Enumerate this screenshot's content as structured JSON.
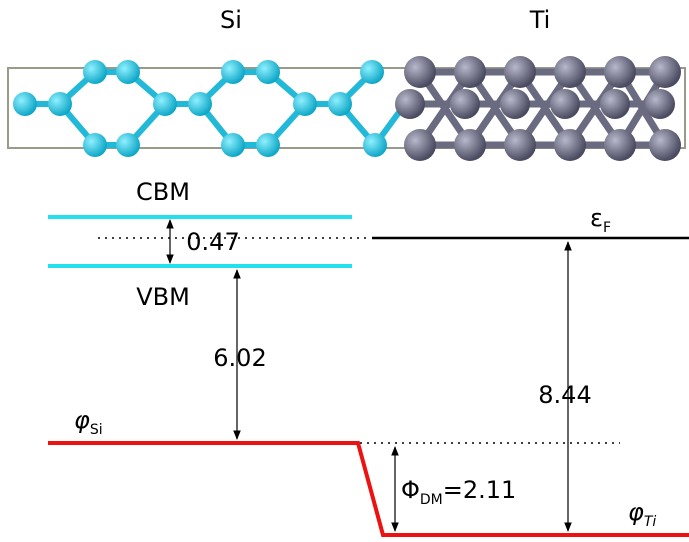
{
  "labels": {
    "left_material": "Si",
    "right_material": "Ti",
    "cbm": "CBM",
    "vbm": "VBM",
    "gap": "0.47",
    "si_offset": "6.02",
    "ti_offset": "8.44"
  },
  "fermi": {
    "symbol": "ε",
    "subscript": "F"
  },
  "phi_si": {
    "symbol": "φ",
    "subscript": "Si"
  },
  "phi_ti": {
    "symbol": "φ",
    "subscript": "Ti"
  },
  "phi_dm": {
    "symbol": "Φ",
    "subscript": "DM",
    "value": "=2.11"
  }
}
